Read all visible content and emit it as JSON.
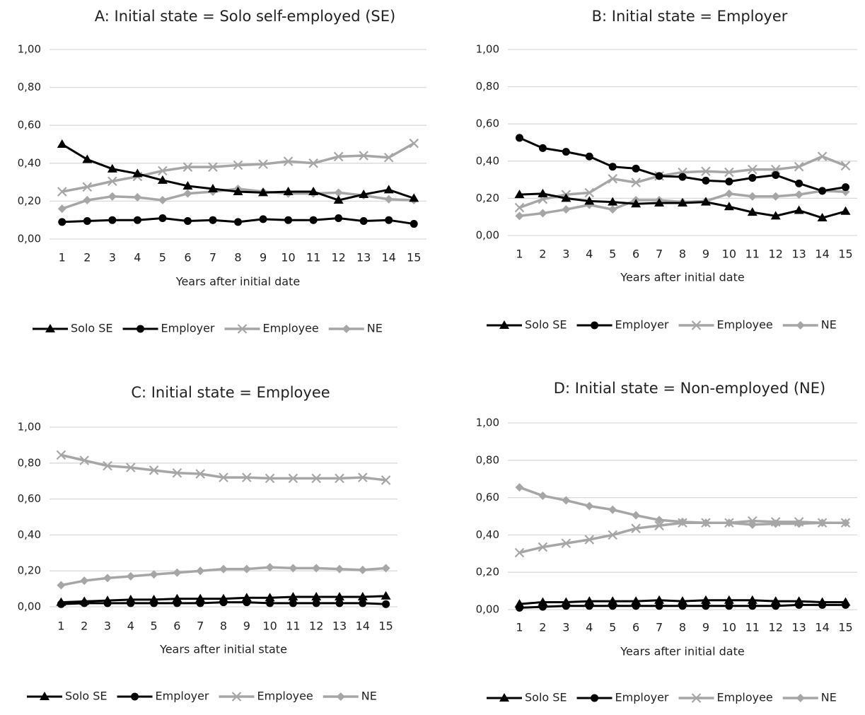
{
  "colors": {
    "solo_se": "#000000",
    "employer": "#000000",
    "employee": "#a6a6a6",
    "ne": "#a6a6a6",
    "grid": "#d9d9d9",
    "text": "#222222"
  },
  "chart_data": [
    {
      "type": "line",
      "title": "A: Initial state = Solo self-employed (SE)",
      "xlabel": "Years after initial date",
      "ylabel": "",
      "ylim": [
        0,
        1
      ],
      "yticks": [
        "0,00",
        "0,20",
        "0,40",
        "0,60",
        "0,80",
        "1,00"
      ],
      "x": [
        "1",
        "2",
        "3",
        "4",
        "5",
        "6",
        "7",
        "8",
        "9",
        "10",
        "11",
        "12",
        "13",
        "14",
        "15"
      ],
      "legend_position": "bottom",
      "grid": true,
      "series": [
        {
          "name": "Solo SE",
          "marker": "triangle",
          "values": [
            0.5,
            0.42,
            0.37,
            0.345,
            0.31,
            0.28,
            0.265,
            0.25,
            0.245,
            0.25,
            0.25,
            0.205,
            0.235,
            0.26,
            0.215
          ]
        },
        {
          "name": "Employer",
          "marker": "circle",
          "values": [
            0.09,
            0.095,
            0.1,
            0.1,
            0.11,
            0.095,
            0.1,
            0.09,
            0.105,
            0.1,
            0.1,
            0.11,
            0.095,
            0.1,
            0.08
          ]
        },
        {
          "name": "Employee",
          "marker": "x",
          "values": [
            0.25,
            0.275,
            0.305,
            0.33,
            0.36,
            0.38,
            0.38,
            0.39,
            0.395,
            0.41,
            0.4,
            0.435,
            0.44,
            0.43,
            0.505
          ]
        },
        {
          "name": "NE",
          "marker": "diamond",
          "values": [
            0.16,
            0.205,
            0.225,
            0.22,
            0.205,
            0.24,
            0.25,
            0.265,
            0.25,
            0.24,
            0.24,
            0.245,
            0.23,
            0.21,
            0.205
          ]
        }
      ]
    },
    {
      "type": "line",
      "title": "B: Initial state = Employer",
      "xlabel": "Years after initial date",
      "ylabel": "",
      "ylim": [
        0,
        1
      ],
      "yticks": [
        "0,00",
        "0,20",
        "0,40",
        "0,60",
        "0,80",
        "1,00"
      ],
      "x": [
        "1",
        "2",
        "3",
        "4",
        "5",
        "6",
        "7",
        "8",
        "9",
        "10",
        "11",
        "12",
        "13",
        "14",
        "15"
      ],
      "legend_position": "bottom",
      "grid": true,
      "series": [
        {
          "name": "Solo SE",
          "marker": "triangle",
          "values": [
            0.22,
            0.225,
            0.2,
            0.185,
            0.18,
            0.17,
            0.175,
            0.175,
            0.18,
            0.155,
            0.125,
            0.105,
            0.135,
            0.095,
            0.13
          ]
        },
        {
          "name": "Employer",
          "marker": "circle",
          "values": [
            0.525,
            0.47,
            0.45,
            0.425,
            0.37,
            0.36,
            0.32,
            0.315,
            0.295,
            0.29,
            0.31,
            0.325,
            0.28,
            0.24,
            0.26
          ]
        },
        {
          "name": "Employee",
          "marker": "x",
          "values": [
            0.15,
            0.195,
            0.22,
            0.23,
            0.305,
            0.285,
            0.32,
            0.34,
            0.345,
            0.34,
            0.355,
            0.355,
            0.37,
            0.425,
            0.375
          ]
        },
        {
          "name": "NE",
          "marker": "diamond",
          "values": [
            0.105,
            0.12,
            0.14,
            0.165,
            0.14,
            0.19,
            0.19,
            0.18,
            0.185,
            0.225,
            0.21,
            0.21,
            0.22,
            0.24,
            0.235
          ]
        }
      ]
    },
    {
      "type": "line",
      "title": "C: Initial state = Employee",
      "xlabel": "Years after initial state",
      "ylabel": "",
      "ylim": [
        0,
        1
      ],
      "yticks": [
        "0,00",
        "0,20",
        "0,40",
        "0,60",
        "0,80",
        "1,00"
      ],
      "x": [
        "1",
        "2",
        "3",
        "4",
        "5",
        "6",
        "7",
        "8",
        "9",
        "10",
        "11",
        "12",
        "13",
        "14",
        "15"
      ],
      "legend_position": "bottom",
      "grid": true,
      "series": [
        {
          "name": "Solo SE",
          "marker": "triangle",
          "values": [
            0.025,
            0.03,
            0.035,
            0.04,
            0.04,
            0.045,
            0.045,
            0.045,
            0.05,
            0.05,
            0.055,
            0.055,
            0.055,
            0.055,
            0.06
          ]
        },
        {
          "name": "Employer",
          "marker": "circle",
          "values": [
            0.015,
            0.02,
            0.02,
            0.02,
            0.02,
            0.02,
            0.02,
            0.025,
            0.025,
            0.02,
            0.02,
            0.02,
            0.02,
            0.02,
            0.015
          ]
        },
        {
          "name": "Employee",
          "marker": "x",
          "values": [
            0.845,
            0.815,
            0.785,
            0.775,
            0.76,
            0.745,
            0.74,
            0.72,
            0.72,
            0.715,
            0.715,
            0.715,
            0.715,
            0.72,
            0.705
          ]
        },
        {
          "name": "NE",
          "marker": "diamond",
          "values": [
            0.12,
            0.145,
            0.16,
            0.17,
            0.18,
            0.19,
            0.2,
            0.21,
            0.21,
            0.22,
            0.215,
            0.215,
            0.21,
            0.205,
            0.215
          ]
        }
      ]
    },
    {
      "type": "line",
      "title": "D: Initial state = Non-employed (NE)",
      "xlabel": "Years after initial date",
      "ylabel": "",
      "ylim": [
        0,
        1
      ],
      "yticks": [
        "0,00",
        "0,20",
        "0,40",
        "0,60",
        "0,80",
        "1,00"
      ],
      "x": [
        "1",
        "2",
        "3",
        "4",
        "5",
        "6",
        "7",
        "8",
        "9",
        "10",
        "11",
        "12",
        "13",
        "14",
        "15"
      ],
      "legend_position": "bottom",
      "grid": true,
      "series": [
        {
          "name": "Solo SE",
          "marker": "triangle",
          "values": [
            0.03,
            0.04,
            0.04,
            0.045,
            0.045,
            0.045,
            0.05,
            0.045,
            0.05,
            0.05,
            0.05,
            0.045,
            0.045,
            0.04,
            0.04
          ]
        },
        {
          "name": "Employer",
          "marker": "circle",
          "values": [
            0.01,
            0.015,
            0.02,
            0.02,
            0.02,
            0.02,
            0.02,
            0.02,
            0.02,
            0.02,
            0.02,
            0.02,
            0.025,
            0.025,
            0.025
          ]
        },
        {
          "name": "Employee",
          "marker": "x",
          "values": [
            0.305,
            0.335,
            0.355,
            0.375,
            0.4,
            0.435,
            0.45,
            0.465,
            0.465,
            0.465,
            0.475,
            0.47,
            0.47,
            0.465,
            0.465
          ]
        },
        {
          "name": "NE",
          "marker": "diamond",
          "values": [
            0.655,
            0.61,
            0.585,
            0.555,
            0.535,
            0.505,
            0.48,
            0.47,
            0.465,
            0.465,
            0.455,
            0.46,
            0.46,
            0.465,
            0.465
          ]
        }
      ]
    }
  ]
}
